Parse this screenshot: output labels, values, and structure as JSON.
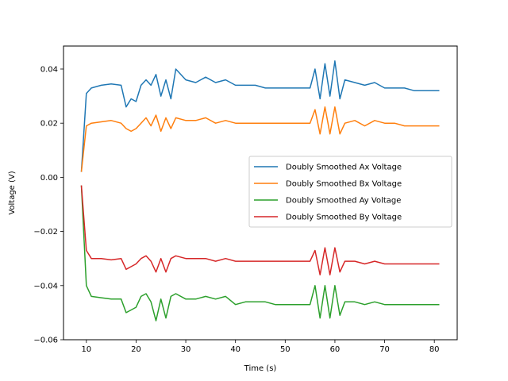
{
  "chart_data": {
    "type": "line",
    "xlabel": "Time (s)",
    "ylabel": "Voltage (V)",
    "xlim": [
      5.4,
      84.6
    ],
    "ylim": [
      -0.06,
      0.0485
    ],
    "xticks": [
      10,
      20,
      30,
      40,
      50,
      60,
      70,
      80
    ],
    "xtick_labels": [
      "10",
      "20",
      "30",
      "40",
      "50",
      "60",
      "70",
      "80"
    ],
    "yticks": [
      -0.06,
      -0.04,
      -0.02,
      0.0,
      0.02,
      0.04
    ],
    "ytick_labels": [
      "−0.06",
      "−0.04",
      "−0.02",
      "0.00",
      "0.02",
      "0.04"
    ],
    "grid": false,
    "legend_position": "center-right",
    "series": [
      {
        "name": "Doubly Smoothed Ax Voltage",
        "color": "#1f77b4",
        "x": [
          9,
          10,
          11,
          13,
          15,
          17,
          18,
          19,
          20,
          21,
          22,
          23,
          24,
          25,
          26,
          27,
          28,
          30,
          32,
          34,
          36,
          38,
          40,
          42,
          44,
          46,
          48,
          50,
          52,
          54,
          55,
          56,
          57,
          58,
          59,
          60,
          61,
          62,
          64,
          66,
          68,
          70,
          72,
          74,
          76,
          78,
          80,
          81
        ],
        "y": [
          0.002,
          0.031,
          0.033,
          0.034,
          0.0345,
          0.034,
          0.026,
          0.029,
          0.028,
          0.034,
          0.036,
          0.034,
          0.038,
          0.03,
          0.036,
          0.029,
          0.04,
          0.036,
          0.035,
          0.037,
          0.035,
          0.036,
          0.034,
          0.034,
          0.034,
          0.033,
          0.033,
          0.033,
          0.033,
          0.033,
          0.033,
          0.04,
          0.029,
          0.042,
          0.03,
          0.043,
          0.029,
          0.036,
          0.035,
          0.034,
          0.035,
          0.033,
          0.033,
          0.033,
          0.032,
          0.032,
          0.032,
          0.032
        ]
      },
      {
        "name": "Doubly Smoothed Bx Voltage",
        "color": "#ff7f0e",
        "x": [
          9,
          10,
          11,
          13,
          15,
          17,
          18,
          19,
          20,
          21,
          22,
          23,
          24,
          25,
          26,
          27,
          28,
          30,
          32,
          34,
          36,
          38,
          40,
          42,
          44,
          46,
          48,
          50,
          52,
          54,
          55,
          56,
          57,
          58,
          59,
          60,
          61,
          62,
          64,
          66,
          68,
          70,
          72,
          74,
          76,
          78,
          80,
          81
        ],
        "y": [
          0.002,
          0.019,
          0.02,
          0.0205,
          0.021,
          0.02,
          0.018,
          0.017,
          0.018,
          0.02,
          0.022,
          0.019,
          0.023,
          0.017,
          0.022,
          0.018,
          0.022,
          0.021,
          0.021,
          0.022,
          0.02,
          0.021,
          0.02,
          0.02,
          0.02,
          0.02,
          0.02,
          0.02,
          0.02,
          0.02,
          0.02,
          0.025,
          0.016,
          0.026,
          0.016,
          0.026,
          0.016,
          0.02,
          0.021,
          0.019,
          0.021,
          0.02,
          0.02,
          0.019,
          0.019,
          0.019,
          0.019,
          0.019
        ]
      },
      {
        "name": "Doubly Smoothed Ay Voltage",
        "color": "#2ca02c",
        "x": [
          9,
          10,
          11,
          13,
          15,
          17,
          18,
          19,
          20,
          21,
          22,
          23,
          24,
          25,
          26,
          27,
          28,
          30,
          32,
          34,
          36,
          38,
          40,
          42,
          44,
          46,
          48,
          50,
          52,
          54,
          55,
          56,
          57,
          58,
          59,
          60,
          61,
          62,
          64,
          66,
          68,
          70,
          72,
          74,
          76,
          78,
          80,
          81
        ],
        "y": [
          -0.003,
          -0.04,
          -0.044,
          -0.0445,
          -0.045,
          -0.045,
          -0.05,
          -0.049,
          -0.048,
          -0.044,
          -0.043,
          -0.046,
          -0.053,
          -0.045,
          -0.052,
          -0.044,
          -0.043,
          -0.045,
          -0.045,
          -0.044,
          -0.045,
          -0.044,
          -0.047,
          -0.046,
          -0.046,
          -0.046,
          -0.047,
          -0.047,
          -0.047,
          -0.047,
          -0.047,
          -0.04,
          -0.052,
          -0.04,
          -0.052,
          -0.04,
          -0.051,
          -0.046,
          -0.046,
          -0.047,
          -0.046,
          -0.047,
          -0.047,
          -0.047,
          -0.047,
          -0.047,
          -0.047,
          -0.047
        ]
      },
      {
        "name": "Doubly Smoothed By Voltage",
        "color": "#d62728",
        "x": [
          9,
          10,
          11,
          13,
          15,
          17,
          18,
          19,
          20,
          21,
          22,
          23,
          24,
          25,
          26,
          27,
          28,
          30,
          32,
          34,
          36,
          38,
          40,
          42,
          44,
          46,
          48,
          50,
          52,
          54,
          55,
          56,
          57,
          58,
          59,
          60,
          61,
          62,
          64,
          66,
          68,
          70,
          72,
          74,
          76,
          78,
          80,
          81
        ],
        "y": [
          -0.003,
          -0.027,
          -0.03,
          -0.03,
          -0.0305,
          -0.03,
          -0.034,
          -0.033,
          -0.032,
          -0.03,
          -0.029,
          -0.031,
          -0.035,
          -0.03,
          -0.035,
          -0.03,
          -0.029,
          -0.03,
          -0.03,
          -0.03,
          -0.031,
          -0.03,
          -0.031,
          -0.031,
          -0.031,
          -0.031,
          -0.031,
          -0.031,
          -0.031,
          -0.031,
          -0.031,
          -0.027,
          -0.036,
          -0.026,
          -0.036,
          -0.026,
          -0.035,
          -0.031,
          -0.031,
          -0.032,
          -0.031,
          -0.032,
          -0.032,
          -0.032,
          -0.032,
          -0.032,
          -0.032,
          -0.032
        ]
      }
    ]
  }
}
